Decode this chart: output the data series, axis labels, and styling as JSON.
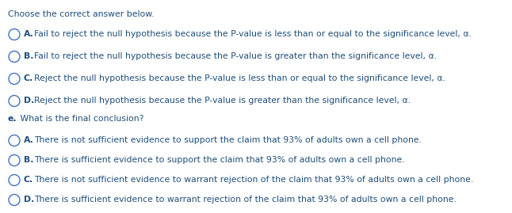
{
  "bg_color": "#ffffff",
  "header_text": "Choose the correct answer below.",
  "section_e_label": "e.",
  "section_e_text": " What is the final conclusion?",
  "options_part1": [
    {
      "label": "A.",
      "text": "Fail to reject the null hypothesis because the P-value is less than or equal to the significance level, α."
    },
    {
      "label": "B.",
      "text": "Fail to reject the null hypothesis because the P-value is greater than the significance level, α."
    },
    {
      "label": "C.",
      "text": "Reject the null hypothesis because the P-value is less than or equal to the significance level, α."
    },
    {
      "label": "D.",
      "text": "Reject the null hypothesis because the P-value is greater than the significance level, α."
    }
  ],
  "options_part2": [
    {
      "label": "A.",
      "text": "There is not sufficient evidence to support the claim that 93% of adults own a cell phone."
    },
    {
      "label": "B.",
      "text": "There is sufficient evidence to support the claim that 93% of adults own a cell phone."
    },
    {
      "label": "C.",
      "text": "There is not sufficient evidence to warrant rejection of the claim that 93% of adults own a cell phone."
    },
    {
      "label": "D.",
      "text": "There is sufficient evidence to warrant rejection of the claim that 93% of adults own a cell phone."
    }
  ],
  "text_color": "#1f4e79",
  "circle_color": "#4472c4",
  "fontsize": 7.8,
  "fig_width": 6.46,
  "fig_height": 2.69,
  "dpi": 100
}
